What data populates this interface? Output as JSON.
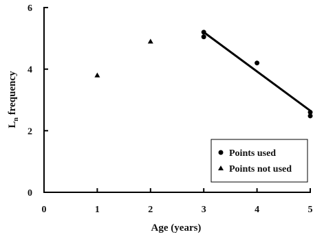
{
  "chart_data": {
    "type": "scatter",
    "title": "",
    "xlabel": "Age (years)",
    "ylabel_main": "L",
    "ylabel_sub": "n",
    "ylabel_rest": " frequency",
    "xlim": [
      0,
      5
    ],
    "ylim": [
      0,
      6
    ],
    "xticks": [
      "0",
      "1",
      "2",
      "3",
      "4",
      "5"
    ],
    "yticks": [
      "0",
      "2",
      "4",
      "6"
    ],
    "grid": false,
    "legend_position": "bottom-right",
    "series": [
      {
        "name": "Points used",
        "marker": "circle",
        "points": [
          {
            "x": 3,
            "y": 5.2
          },
          {
            "x": 3,
            "y": 5.05
          },
          {
            "x": 4,
            "y": 4.2
          },
          {
            "x": 5,
            "y": 2.6
          },
          {
            "x": 5,
            "y": 2.48
          }
        ]
      },
      {
        "name": "Points not used",
        "marker": "triangle",
        "points": [
          {
            "x": 1,
            "y": 3.8
          },
          {
            "x": 2,
            "y": 4.9
          }
        ]
      }
    ],
    "regression_line": {
      "x1": 3,
      "y1": 5.2,
      "x2": 5,
      "y2": 2.65
    },
    "colors": {
      "marker": "#000000",
      "line": "#000000",
      "axis": "#000000"
    }
  }
}
